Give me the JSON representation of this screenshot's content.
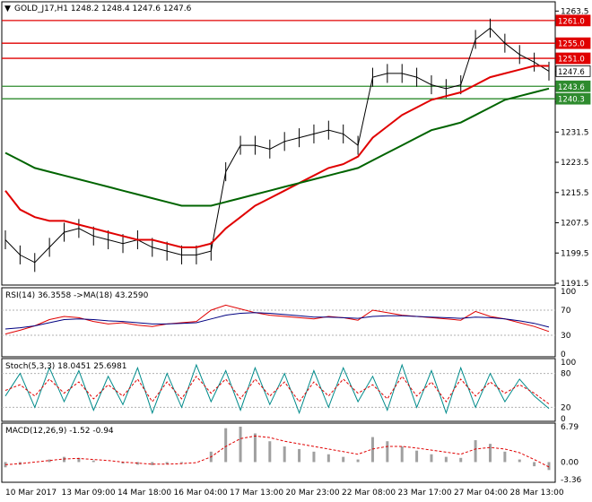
{
  "header": {
    "symbol_line": "GOLD_J17,H1  1248.2 1248.4 1247.6 1247.6",
    "rsi_line": "RSI(14) 36.3558  ->MA(18) 43.2590",
    "stoch_line": "Stoch(5,3,3) 18.0451 25.6981",
    "macd_line": "MACD(12,26,9) -1.52 -0.94"
  },
  "price_axis": [
    "1263.5",
    "1255.5",
    "1247.5",
    "1239.5",
    "1231.5",
    "1223.5",
    "1215.5",
    "1207.5",
    "1199.5",
    "1191.5"
  ],
  "price_tags": [
    {
      "text": "1261.0",
      "color": "#e00000",
      "value": 1261.0
    },
    {
      "text": "1255.0",
      "color": "#e00000",
      "value": 1255.0
    },
    {
      "text": "1251.0",
      "color": "#e00000",
      "value": 1251.0
    },
    {
      "text": "1247.6",
      "color": "#ffffff",
      "value": 1247.6
    },
    {
      "text": "1243.6",
      "color": "#2e8b2e",
      "value": 1243.6
    },
    {
      "text": "1240.3",
      "color": "#2e8b2e",
      "value": 1240.3
    }
  ],
  "rsi_axis": [
    "100",
    "70",
    "30",
    "0"
  ],
  "stoch_axis": [
    "100",
    "80",
    "20",
    "0"
  ],
  "macd_axis": [
    "6.79",
    "0.00",
    "-3.36"
  ],
  "time_axis": [
    "10 Mar 2017",
    "13 Mar 09:00",
    "14 Mar 18:00",
    "16 Mar 04:00",
    "17 Mar 13:00",
    "20 Mar 23:00",
    "22 Mar 08:00",
    "23 Mar 17:00",
    "27 Mar 04:00",
    "28 Mar 13:00"
  ],
  "colors": {
    "red_line": "#e00000",
    "green_line": "#006400",
    "price": "#000000",
    "rsi": "#e00000",
    "rsi_ma": "#000080",
    "stoch_main": "#008b8b",
    "stoch_signal": "#e00000",
    "macd_hist": "#a0a0a0",
    "macd_signal": "#e00000"
  },
  "chart_data": [
    {
      "type": "line",
      "title": "GOLD_J17,H1",
      "ylim": [
        1191.5,
        1265
      ],
      "horizontal_lines": [
        {
          "value": 1261.0,
          "color": "#e00000"
        },
        {
          "value": 1255.0,
          "color": "#e00000"
        },
        {
          "value": 1251.0,
          "color": "#e00000"
        },
        {
          "value": 1243.6,
          "color": "#2e8b2e"
        },
        {
          "value": 1240.3,
          "color": "#2e8b2e"
        }
      ],
      "series": [
        {
          "name": "close",
          "values": [
            1203,
            1199,
            1197,
            1201,
            1205,
            1206,
            1204,
            1203,
            1202,
            1203,
            1201,
            1200,
            1199,
            1199,
            1200,
            1221,
            1228,
            1228,
            1227,
            1229,
            1230,
            1231,
            1232,
            1231,
            1228,
            1246,
            1247,
            1247,
            1246,
            1244,
            1243,
            1244,
            1256,
            1259,
            1255,
            1252,
            1250,
            1247.6
          ]
        },
        {
          "name": "ma_red",
          "values": [
            1216,
            1211,
            1209,
            1208,
            1208,
            1207,
            1206,
            1205,
            1204,
            1203,
            1203,
            1202,
            1201,
            1201,
            1202,
            1206,
            1209,
            1212,
            1214,
            1216,
            1218,
            1220,
            1222,
            1223,
            1225,
            1230,
            1233,
            1236,
            1238,
            1240,
            1241,
            1242,
            1244,
            1246,
            1247,
            1248,
            1249,
            1249
          ]
        },
        {
          "name": "ma_green",
          "values": [
            1226,
            1224,
            1222,
            1221,
            1220,
            1219,
            1218,
            1217,
            1216,
            1215,
            1214,
            1213,
            1212,
            1212,
            1212,
            1213,
            1214,
            1215,
            1216,
            1217,
            1218,
            1219,
            1220,
            1221,
            1222,
            1224,
            1226,
            1228,
            1230,
            1232,
            1233,
            1234,
            1236,
            1238,
            1240,
            1241,
            1242,
            1243
          ]
        }
      ]
    },
    {
      "type": "line",
      "title": "RSI(14)",
      "ylim": [
        0,
        100
      ],
      "series": [
        {
          "name": "RSI",
          "values": [
            32,
            38,
            45,
            55,
            60,
            58,
            52,
            48,
            50,
            46,
            44,
            48,
            50,
            52,
            70,
            78,
            72,
            66,
            62,
            60,
            58,
            56,
            60,
            58,
            54,
            70,
            66,
            62,
            60,
            58,
            56,
            54,
            68,
            60,
            56,
            50,
            44,
            36
          ]
        },
        {
          "name": "MA",
          "values": [
            40,
            42,
            45,
            50,
            55,
            56,
            55,
            53,
            52,
            50,
            48,
            48,
            49,
            50,
            56,
            62,
            65,
            66,
            65,
            63,
            61,
            59,
            59,
            58,
            57,
            60,
            61,
            61,
            60,
            59,
            58,
            57,
            59,
            58,
            56,
            53,
            49,
            43
          ]
        }
      ]
    },
    {
      "type": "line",
      "title": "Stoch(5,3,3)",
      "ylim": [
        0,
        100
      ],
      "series": [
        {
          "name": "main",
          "values": [
            40,
            80,
            20,
            90,
            30,
            85,
            15,
            75,
            25,
            90,
            10,
            80,
            20,
            95,
            30,
            85,
            15,
            90,
            25,
            80,
            10,
            85,
            20,
            90,
            30,
            75,
            15,
            95,
            20,
            85,
            10,
            90,
            20,
            80,
            30,
            70,
            40,
            18
          ]
        },
        {
          "name": "signal",
          "values": [
            50,
            60,
            40,
            70,
            45,
            65,
            35,
            60,
            40,
            70,
            30,
            65,
            35,
            75,
            45,
            70,
            35,
            70,
            40,
            65,
            30,
            65,
            40,
            70,
            45,
            60,
            35,
            75,
            40,
            65,
            30,
            70,
            40,
            65,
            45,
            60,
            45,
            26
          ]
        }
      ]
    },
    {
      "type": "bar",
      "title": "MACD(12,26,9)",
      "ylim": [
        -3.36,
        6.79
      ],
      "series": [
        {
          "name": "MACD",
          "values": [
            -1,
            -0.5,
            0,
            0.5,
            1,
            0.8,
            0.3,
            0,
            -0.3,
            -0.5,
            -0.6,
            -0.4,
            -0.2,
            0,
            2,
            6.5,
            6.8,
            5.5,
            4,
            3,
            2.5,
            2,
            1.5,
            1,
            0.5,
            4.8,
            4,
            3,
            2.2,
            1.5,
            1,
            0.8,
            4.2,
            3.5,
            2,
            0.5,
            -0.8,
            -1.52
          ]
        },
        {
          "name": "Signal",
          "values": [
            -0.5,
            -0.3,
            0,
            0.3,
            0.6,
            0.7,
            0.5,
            0.3,
            0,
            -0.2,
            -0.4,
            -0.4,
            -0.3,
            -0.1,
            1,
            3,
            4.5,
            5,
            4.7,
            4,
            3.5,
            3,
            2.5,
            2,
            1.5,
            2.5,
            3,
            3,
            2.7,
            2.3,
            1.9,
            1.5,
            2.5,
            2.8,
            2.5,
            1.8,
            0.5,
            -0.94
          ]
        }
      ]
    }
  ]
}
